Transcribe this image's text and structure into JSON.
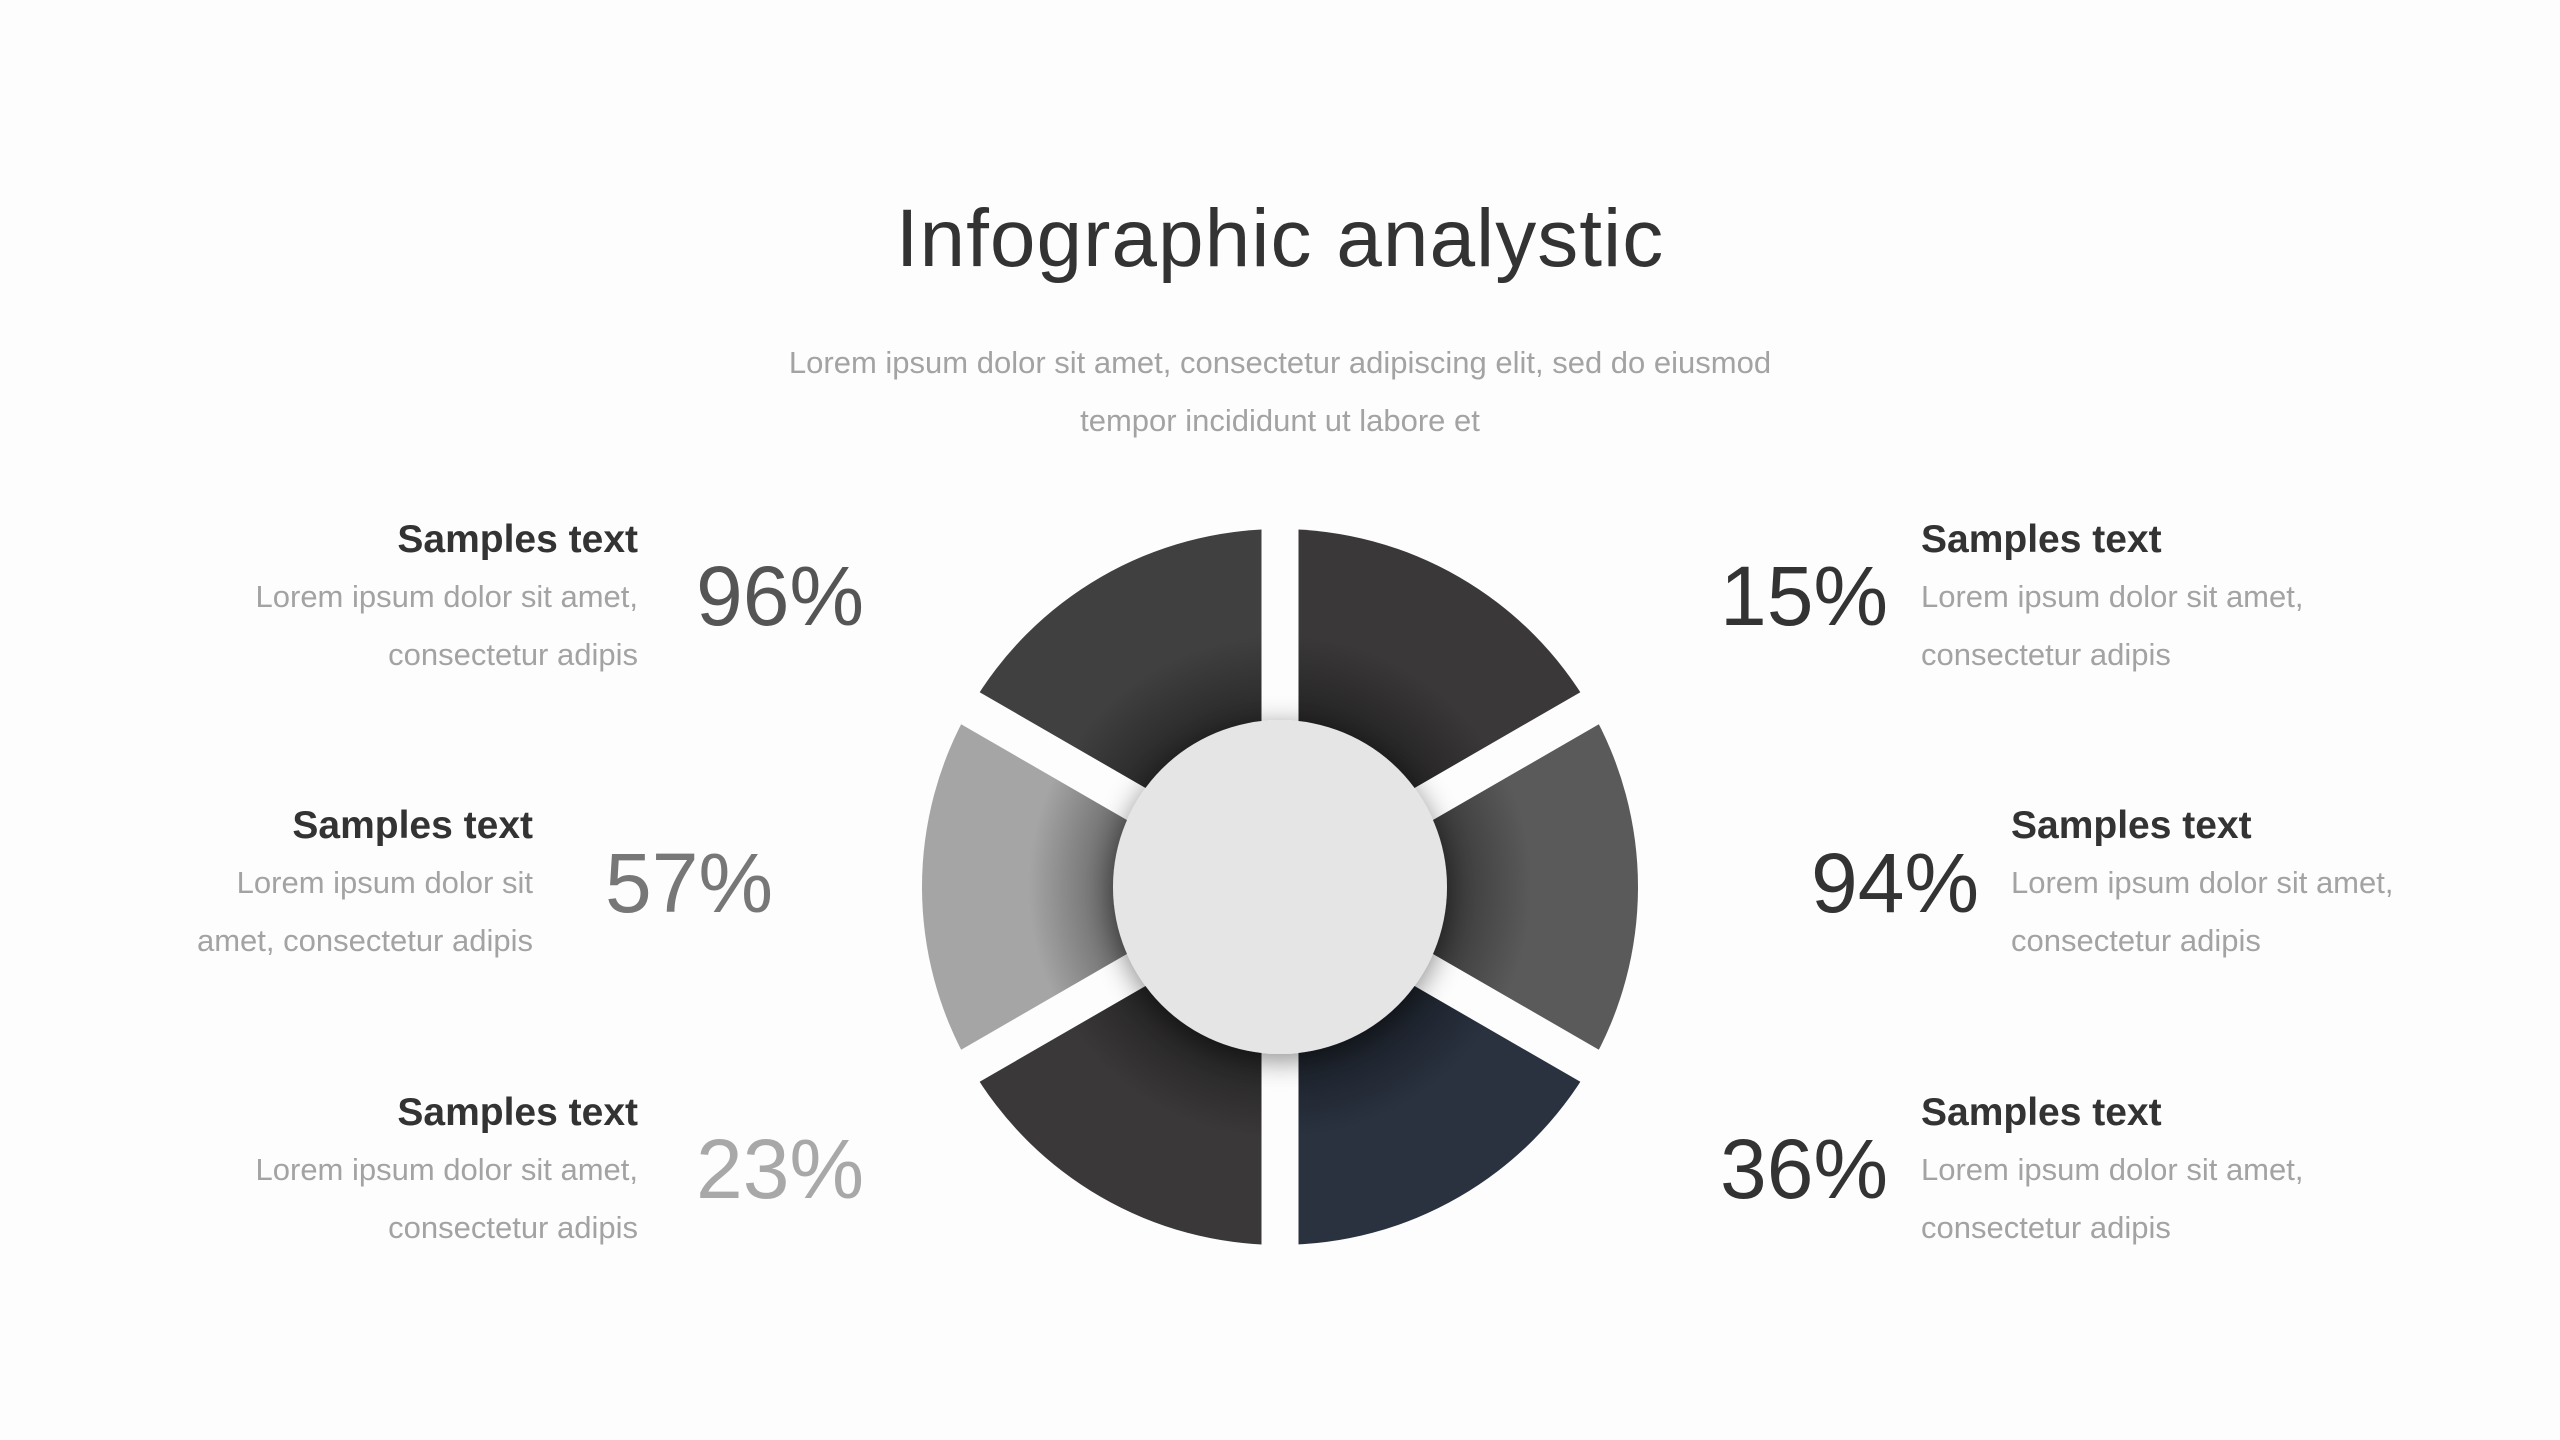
{
  "title": "Infographic analystic",
  "subtitle_lines": [
    "Lorem ipsum dolor sit amet, consectetur adipiscing elit, sed do eiusmod",
    "tempor incididunt ut labore et"
  ],
  "items": [
    {
      "heading": "Samples text",
      "body": [
        "Lorem ipsum dolor sit amet,",
        "consectetur adipis"
      ],
      "percent": "96%",
      "percent_color": "#555555"
    },
    {
      "heading": "Samples text",
      "body": [
        "Lorem ipsum dolor sit",
        "amet, consectetur adipis"
      ],
      "percent": "57%",
      "percent_color": "#777777"
    },
    {
      "heading": "Samples text",
      "body": [
        "Lorem ipsum dolor sit amet,",
        "consectetur adipis"
      ],
      "percent": "23%",
      "percent_color": "#a8a8a8"
    },
    {
      "heading": "Samples text",
      "body": [
        "Lorem ipsum dolor sit amet,",
        "consectetur adipis"
      ],
      "percent": "15%",
      "percent_color": "#333333"
    },
    {
      "heading": "Samples text",
      "body": [
        "Lorem ipsum dolor sit amet,",
        "consectetur adipis"
      ],
      "percent": "94%",
      "percent_color": "#333333"
    },
    {
      "heading": "Samples text",
      "body": [
        "Lorem ipsum dolor sit amet,",
        "consectetur adipis"
      ],
      "percent": "36%",
      "percent_color": "#333333"
    }
  ],
  "wheel": {
    "segments": [
      {
        "position": "top-right",
        "color": "#3a3839"
      },
      {
        "position": "right",
        "color": "#5a5a5a"
      },
      {
        "position": "bottom-right",
        "color": "#2a3240"
      },
      {
        "position": "bottom-left",
        "color": "#3a3839"
      },
      {
        "position": "left",
        "color": "#a5a5a5"
      },
      {
        "position": "top-left",
        "color": "#404040"
      }
    ],
    "hub_color": "#e6e5e6"
  }
}
